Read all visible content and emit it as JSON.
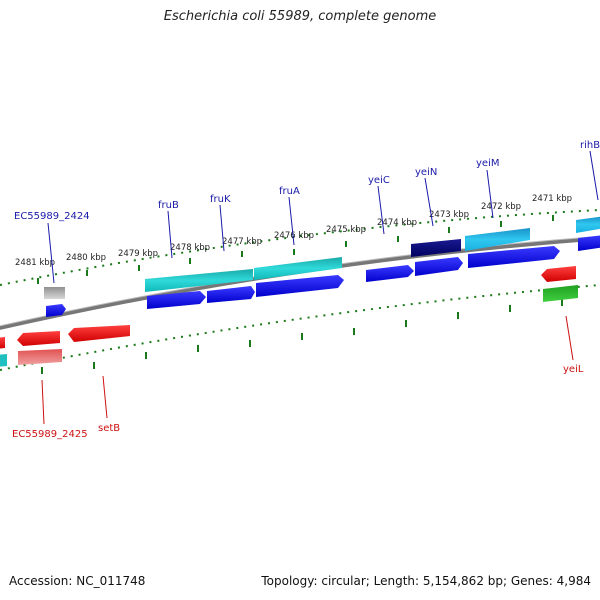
{
  "title": "Escherichia coli 55989, complete genome",
  "accession": "Accession: NC_011748",
  "summary": "Topology: circular; Length: 5,154,862 bp; Genes: 4,984",
  "colors": {
    "backbone": "#888888",
    "tick": "#1a7a1a",
    "pos_label": "#222222",
    "top_label": "#1a1aa8",
    "bottom_label": "#cc1111"
  },
  "kbp_labels": [
    "2481 kbp",
    "2480 kbp",
    "2479 kbp",
    "2478 kbp",
    "2477 kbp",
    "2476 kbp",
    "2475 kbp",
    "2474 kbp",
    "2473 kbp",
    "2472 kbp",
    "2471 kbp"
  ],
  "top_gene_labels": [
    "EC55989_2424",
    "fruB",
    "fruK",
    "fruA",
    "yeiC",
    "yeiN",
    "yeiM",
    "rihB"
  ],
  "bottom_gene_labels": [
    "EC55989_2425",
    "setB",
    "yeiL"
  ]
}
